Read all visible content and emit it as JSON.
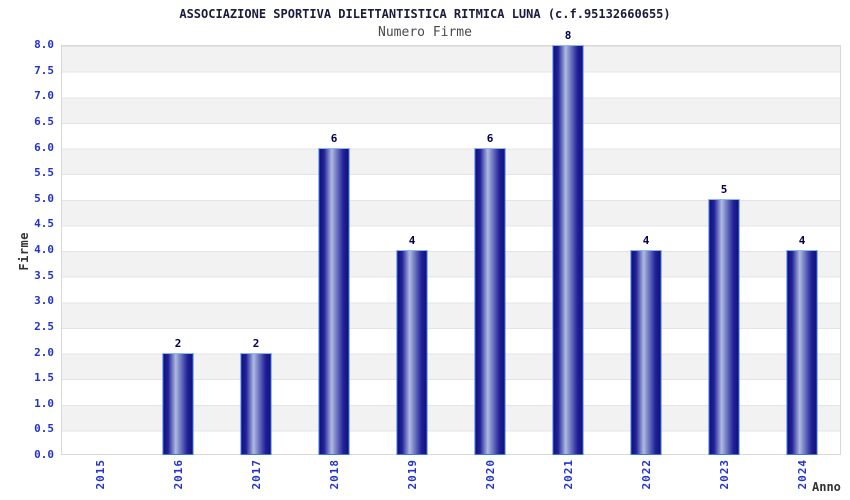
{
  "chart_data": {
    "type": "bar",
    "title": "ASSOCIAZIONE SPORTIVA DILETTANTISTICA RITMICA LUNA (c.f.95132660655)",
    "subtitle": "Numero Firme",
    "xlabel": "Anno",
    "ylabel": "Firme",
    "categories": [
      "2015",
      "2016",
      "2017",
      "2018",
      "2019",
      "2020",
      "2021",
      "2022",
      "2023",
      "2024"
    ],
    "values": [
      0,
      2,
      2,
      6,
      4,
      6,
      8,
      4,
      5,
      4
    ],
    "ylim": [
      0,
      8
    ],
    "ytick_step": 0.5,
    "yticks": [
      "8.0",
      "7.5",
      "7.0",
      "6.5",
      "6.0",
      "5.5",
      "5.0",
      "4.5",
      "4.0",
      "3.5",
      "3.0",
      "2.5",
      "2.0",
      "1.5",
      "1.0",
      "0.5",
      "0.0"
    ],
    "bar_labels_shown": true,
    "legend": "none",
    "grid": "horizontal-bands",
    "colors": {
      "title": "#1a1a3c",
      "subtitle": "#4b4b4b",
      "axis_title": "#333333",
      "tick_label": "#2233cc",
      "value_label": "#00004d",
      "bar_dark": "#10107c",
      "bar_dark2": "#22229a",
      "bar_mid": "#7d88c8",
      "bar_light": "#b0bae2",
      "bar_border": "#3a75e0",
      "bar_border_top": "#8cb6f2",
      "band_gray": "#f2f2f2",
      "band_white": "#ffffff",
      "grid_line": "#e4e4e4",
      "frame": "#d8d8d8",
      "background": "#ffffff"
    }
  }
}
